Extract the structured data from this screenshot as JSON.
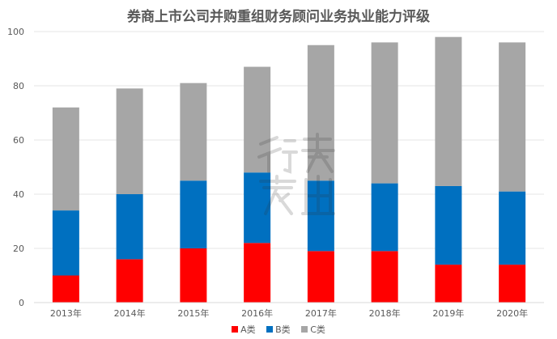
{
  "chart_data": {
    "type": "bar",
    "stacked": true,
    "title": "券商上市公司并购重组财务顾问业务执业能力评级",
    "categories": [
      "2013年",
      "2014年",
      "2015年",
      "2016年",
      "2017年",
      "2018年",
      "2019年",
      "2020年"
    ],
    "series": [
      {
        "name": "A类",
        "color": "#ff0000",
        "values": [
          10,
          16,
          20,
          22,
          19,
          19,
          14,
          14
        ]
      },
      {
        "name": "B类",
        "color": "#0070c0",
        "values": [
          24,
          24,
          25,
          26,
          26,
          25,
          29,
          27
        ]
      },
      {
        "name": "C类",
        "color": "#a6a6a6",
        "values": [
          38,
          39,
          36,
          39,
          50,
          52,
          55,
          55
        ]
      }
    ],
    "ylim": [
      0,
      100
    ],
    "yticks": [
      0,
      20,
      40,
      60,
      80,
      100
    ],
    "grid": true,
    "legend": "bottom",
    "xlabel": "",
    "ylabel": ""
  }
}
